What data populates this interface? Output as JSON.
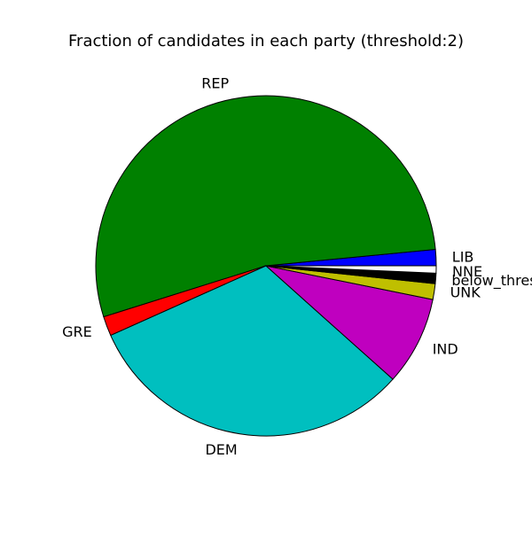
{
  "chart_data": {
    "type": "pie",
    "title": "Fraction of candidates in each party (threshold:2)",
    "start_angle_deg": 0,
    "direction": "counterclockwise",
    "slices": [
      {
        "label": "LIB",
        "value": 1.54,
        "color": "#0000ff"
      },
      {
        "label": "REP",
        "value": 53.31,
        "color": "#008000"
      },
      {
        "label": "GRE",
        "value": 1.86,
        "color": "#ff0000"
      },
      {
        "label": "DEM",
        "value": 31.67,
        "color": "#00bfbf"
      },
      {
        "label": "IND",
        "value": 8.44,
        "color": "#bf00bf"
      },
      {
        "label": "UNK",
        "value": 1.5,
        "color": "#bfbf00"
      },
      {
        "label": "below_threshold",
        "value": 0.99,
        "color": "#000000"
      },
      {
        "label": "NNE",
        "value": 0.69,
        "color": "#ffffff"
      }
    ]
  }
}
